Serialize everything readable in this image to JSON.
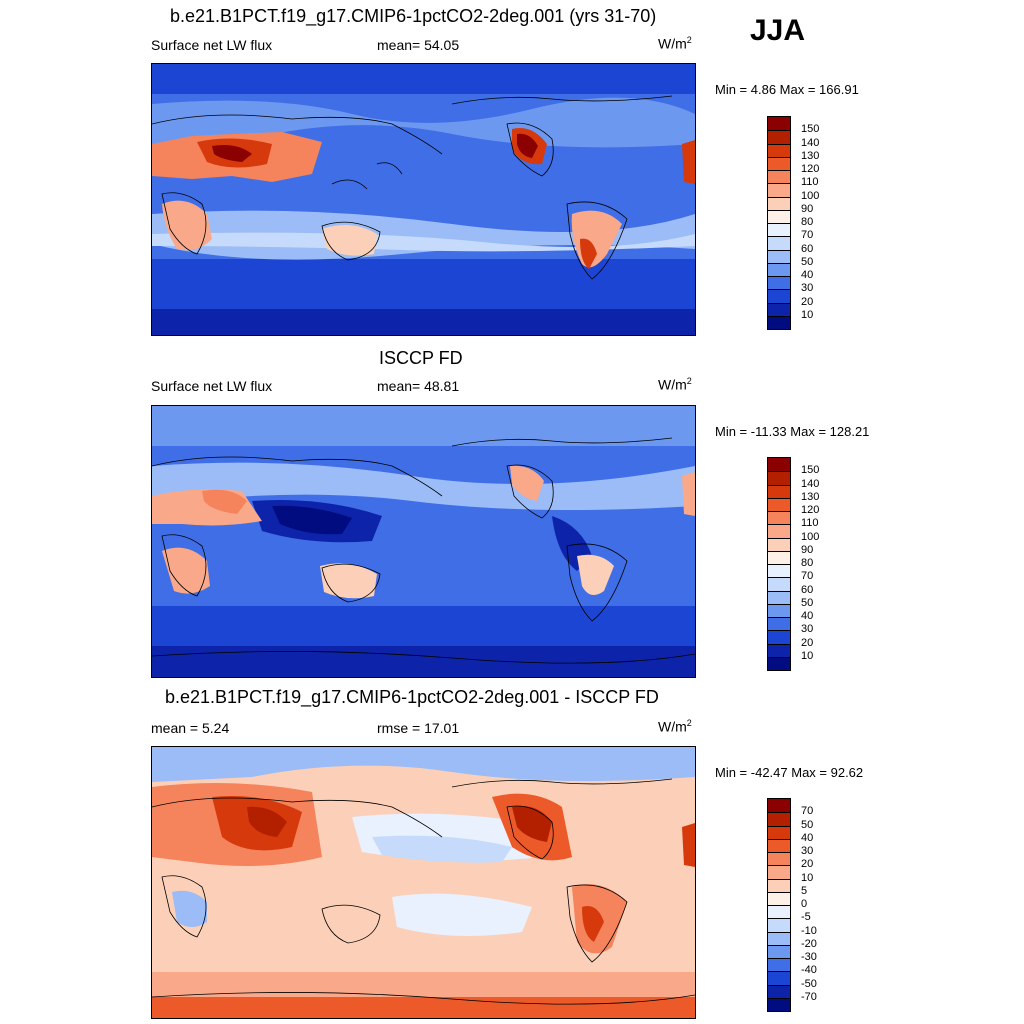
{
  "season": "JJA",
  "panels": [
    {
      "title": "b.e21.B1PCT.f19_g17.CMIP6-1pctCO2-2deg.001 (yrs 31-70)",
      "left_label": "Surface net LW flux",
      "center_label": "mean=  54.05",
      "units": "W/m",
      "units_sup": "2",
      "minmax": "Min =   4.86 Max = 166.91"
    },
    {
      "title": "ISCCP FD",
      "left_label": "Surface net LW flux",
      "center_label": "mean=  48.81",
      "units": "W/m",
      "units_sup": "2",
      "minmax": "Min = -11.33 Max = 128.21"
    },
    {
      "title": "b.e21.B1PCT.f19_g17.CMIP6-1pctCO2-2deg.001 - ISCCP FD",
      "left_label": "mean =   5.24",
      "center_label": "rmse =  17.01",
      "units": "W/m",
      "units_sup": "2",
      "minmax": "Min = -42.47 Max =  92.62"
    }
  ],
  "colorbars": [
    {
      "levels": [
        "150",
        "140",
        "130",
        "120",
        "110",
        "100",
        "90",
        "80",
        "70",
        "60",
        "50",
        "40",
        "30",
        "20",
        "10"
      ],
      "colors": [
        "#8b0000",
        "#b22000",
        "#d63a0c",
        "#ec5a2a",
        "#f5835c",
        "#f9a98a",
        "#fcd0b8",
        "#fdf0e6",
        "#e8f1fd",
        "#c6dafb",
        "#9bbcf6",
        "#6d98ef",
        "#3f6ee6",
        "#1d45d4",
        "#0d24aa",
        "#000c80"
      ]
    },
    {
      "levels": [
        "150",
        "140",
        "130",
        "120",
        "110",
        "100",
        "90",
        "80",
        "70",
        "60",
        "50",
        "40",
        "30",
        "20",
        "10"
      ],
      "colors": [
        "#8b0000",
        "#b22000",
        "#d63a0c",
        "#ec5a2a",
        "#f5835c",
        "#f9a98a",
        "#fcd0b8",
        "#fdf0e6",
        "#e8f1fd",
        "#c6dafb",
        "#9bbcf6",
        "#6d98ef",
        "#3f6ee6",
        "#1d45d4",
        "#0d24aa",
        "#000c80"
      ]
    },
    {
      "levels": [
        "70",
        "50",
        "40",
        "30",
        "20",
        "10",
        "5",
        "0",
        "-5",
        "-10",
        "-20",
        "-30",
        "-40",
        "-50",
        "-70"
      ],
      "colors": [
        "#8b0000",
        "#b22000",
        "#d63a0c",
        "#ec5a2a",
        "#f5835c",
        "#f9a98a",
        "#fcd0b8",
        "#fdf0e6",
        "#e8f1fd",
        "#c6dafb",
        "#9bbcf6",
        "#6d98ef",
        "#3f6ee6",
        "#1d45d4",
        "#0d24aa",
        "#000c80"
      ]
    }
  ],
  "chart_data": [
    {
      "type": "heatmap",
      "title": "b.e21.B1PCT.f19_g17.CMIP6-1pctCO2-2deg.001 (yrs 31-70)",
      "variable": "Surface net LW flux",
      "units": "W/m2",
      "mean": 54.05,
      "min": 4.86,
      "max": 166.91,
      "contour_levels": [
        10,
        20,
        30,
        40,
        50,
        60,
        70,
        80,
        90,
        100,
        110,
        120,
        130,
        140,
        150
      ]
    },
    {
      "type": "heatmap",
      "title": "ISCCP FD",
      "variable": "Surface net LW flux",
      "units": "W/m2",
      "mean": 48.81,
      "min": -11.33,
      "max": 128.21,
      "contour_levels": [
        10,
        20,
        30,
        40,
        50,
        60,
        70,
        80,
        90,
        100,
        110,
        120,
        130,
        140,
        150
      ]
    },
    {
      "type": "heatmap",
      "title": "b.e21.B1PCT.f19_g17.CMIP6-1pctCO2-2deg.001 - ISCCP FD",
      "units": "W/m2",
      "mean": 5.24,
      "rmse": 17.01,
      "min": -42.47,
      "max": 92.62,
      "contour_levels": [
        -70,
        -50,
        -40,
        -30,
        -20,
        -10,
        -5,
        0,
        5,
        10,
        20,
        30,
        40,
        50,
        70
      ]
    }
  ]
}
